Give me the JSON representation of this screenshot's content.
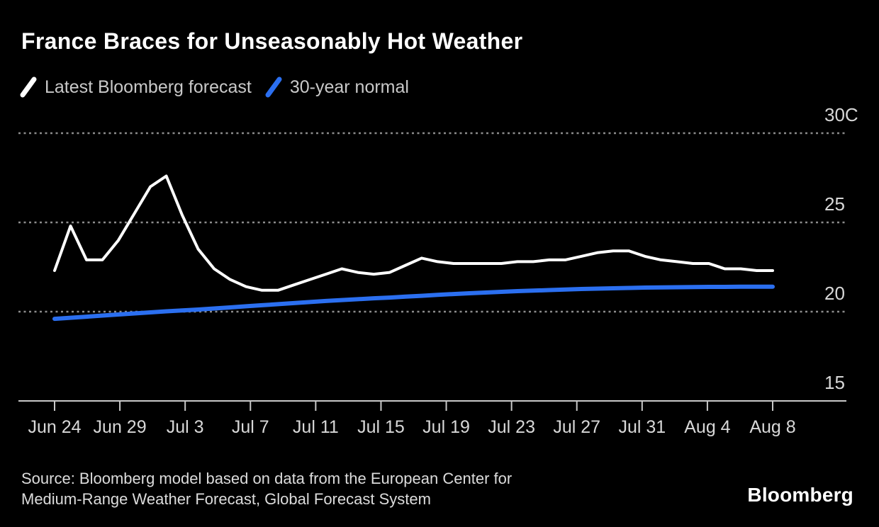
{
  "page": {
    "background": "#000000"
  },
  "header": {
    "title": "France Braces for Unseasonably Hot Weather"
  },
  "legend": {
    "items": [
      {
        "label": "Latest Bloomberg forecast",
        "color": "#ffffff"
      },
      {
        "label": "30-year normal",
        "color": "#2b6ff0"
      }
    ]
  },
  "chart_data": {
    "type": "line",
    "title": "France Braces for Unseasonably Hot Weather",
    "unit": "C",
    "ylim": [
      15,
      30
    ],
    "grid": "horizontal-dotted",
    "legend_position": "top-left",
    "background": "#000000",
    "y_ticks": [
      {
        "label": "30C",
        "value": 30
      },
      {
        "label": "25",
        "value": 25
      },
      {
        "label": "20",
        "value": 20
      },
      {
        "label": "15",
        "value": 15
      }
    ],
    "x_tick_labels": [
      "Jun 24",
      "Jun 29",
      "Jul 3",
      "Jul 7",
      "Jul 11",
      "Jul 15",
      "Jul 19",
      "Jul 23",
      "Jul 27",
      "Jul 31",
      "Aug 4",
      "Aug 8"
    ],
    "x": [
      "Jun 24",
      "Jun 25",
      "Jun 26",
      "Jun 27",
      "Jun 28",
      "Jun 29",
      "Jun 30",
      "Jul 1",
      "Jul 2",
      "Jul 3",
      "Jul 4",
      "Jul 5",
      "Jul 6",
      "Jul 7",
      "Jul 8",
      "Jul 9",
      "Jul 10",
      "Jul 11",
      "Jul 12",
      "Jul 13",
      "Jul 14",
      "Jul 15",
      "Jul 16",
      "Jul 17",
      "Jul 18",
      "Jul 19",
      "Jul 20",
      "Jul 21",
      "Jul 22",
      "Jul 23",
      "Jul 24",
      "Jul 25",
      "Jul 26",
      "Jul 27",
      "Jul 28",
      "Jul 29",
      "Jul 30",
      "Jul 31",
      "Aug 1",
      "Aug 2",
      "Aug 3",
      "Aug 4",
      "Aug 5",
      "Aug 6",
      "Aug 7",
      "Aug 8"
    ],
    "series": [
      {
        "name": "Latest Bloomberg forecast",
        "color": "#ffffff",
        "stroke_width": 4,
        "values": [
          22.3,
          24.8,
          22.9,
          22.9,
          24.0,
          25.5,
          27.0,
          27.6,
          25.4,
          23.5,
          22.4,
          21.8,
          21.4,
          21.2,
          21.2,
          21.5,
          21.8,
          22.1,
          22.4,
          22.2,
          22.1,
          22.2,
          22.6,
          23.0,
          22.8,
          22.7,
          22.7,
          22.7,
          22.7,
          22.8,
          22.8,
          22.9,
          22.9,
          23.1,
          23.3,
          23.4,
          23.4,
          23.1,
          22.9,
          22.8,
          22.7,
          22.7,
          22.4,
          22.4,
          22.3,
          22.3
        ]
      },
      {
        "name": "30-year normal",
        "color": "#2b6ff0",
        "stroke_width": 6,
        "values": [
          19.6,
          19.66,
          19.72,
          19.78,
          19.84,
          19.9,
          19.96,
          20.02,
          20.07,
          20.12,
          20.18,
          20.24,
          20.3,
          20.36,
          20.42,
          20.48,
          20.54,
          20.6,
          20.65,
          20.7,
          20.75,
          20.79,
          20.84,
          20.89,
          20.94,
          20.99,
          21.03,
          21.07,
          21.11,
          21.15,
          21.18,
          21.21,
          21.24,
          21.27,
          21.29,
          21.31,
          21.33,
          21.35,
          21.36,
          21.37,
          21.38,
          21.39,
          21.39,
          21.4,
          21.4,
          21.4
        ]
      }
    ]
  },
  "footer": {
    "source_line1": "Source: Bloomberg model based on data from the European Center for",
    "source_line2": "Medium-Range Weather Forecast, Global Forecast System",
    "brand": "Bloomberg"
  }
}
